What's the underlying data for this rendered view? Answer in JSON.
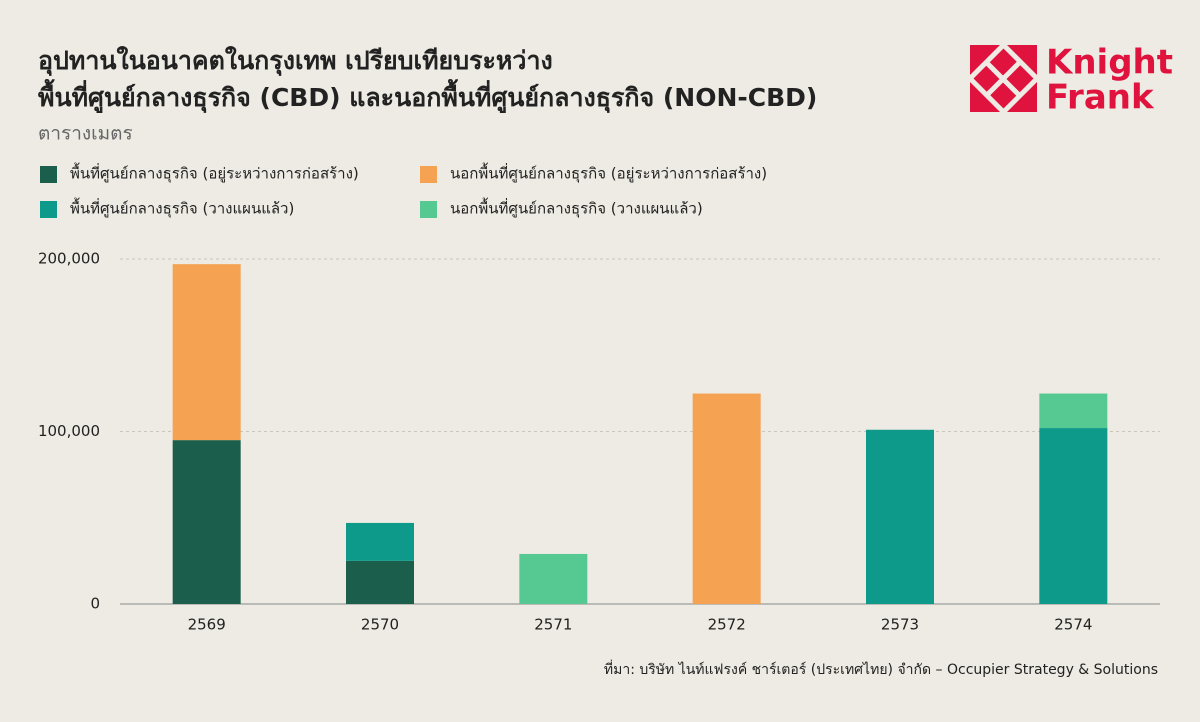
{
  "chart_data": {
    "type": "stacked_bar",
    "title": [
      "อุปทานในอนาคตในกรุงเทพ เปรียบเทียบระหว่าง",
      "พื้นที่ศูนย์กลางธุรกิจ (CBD) และนอกพื้นที่ศูนย์กลางธุรกิจ (NON-CBD)"
    ],
    "subtitle": "ตารางเมตร",
    "logo": [
      "Knight",
      "Frank"
    ],
    "source": "ที่มา: บริษัท ไนท์แฟรงค์ ชาร์เตอร์ (ประเทศไทย) จำกัด – Occupier Strategy & Solutions",
    "categories": [
      "2569",
      "2570",
      "2571",
      "2572",
      "2573",
      "2574"
    ],
    "series": [
      {
        "name": "พื้นที่ศูนย์กลางธุรกิจ (อยู่ระหว่างการก่อสร้าง)",
        "color": "#1a5e4b",
        "values": [
          95000,
          25000,
          0,
          0,
          0,
          0
        ]
      },
      {
        "name": "พื้นที่ศูนย์กลางธุรกิจ (วางแผนแล้ว)",
        "color": "#0e9a8a",
        "values": [
          0,
          22000,
          0,
          0,
          101000,
          102000
        ]
      },
      {
        "name": "นอกพื้นที่ศูนย์กลางธุรกิจ (อยู่ระหว่างการก่อสร้าง)",
        "color": "#f5a253",
        "values": [
          102000,
          0,
          0,
          122000,
          0,
          0
        ]
      },
      {
        "name": "นอกพื้นที่ศูนย์กลางธุรกิจ (วางแผนแล้ว)",
        "color": "#56c892",
        "values": [
          0,
          0,
          29000,
          0,
          0,
          20000
        ]
      }
    ],
    "ylim": [
      0,
      200000
    ],
    "yticks": [
      0,
      {
        "value": 100000,
        "label": "100,000"
      },
      {
        "value": 200000,
        "label": "200,000"
      }
    ],
    "grid": true
  }
}
